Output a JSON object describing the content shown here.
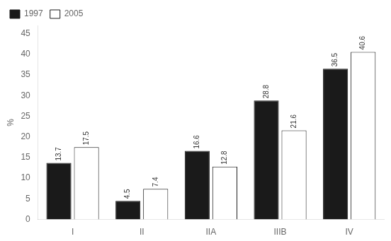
{
  "chart_data": {
    "type": "bar",
    "categories": [
      "I",
      "II",
      "IIA",
      "IIIB",
      "IV"
    ],
    "series": [
      {
        "name": "1997",
        "color": "#1a1a1a",
        "values": [
          13.7,
          4.5,
          16.6,
          28.8,
          36.5
        ]
      },
      {
        "name": "2005",
        "color": "#ffffff",
        "values": [
          17.5,
          7.4,
          12.8,
          21.6,
          40.6
        ]
      }
    ],
    "ylabel": "%",
    "ylim": [
      0,
      47
    ],
    "yticks": [
      0,
      5,
      10,
      15,
      20,
      25,
      30,
      35,
      40,
      45
    ],
    "grid": false,
    "legend": "upper left",
    "data_labels": true
  }
}
